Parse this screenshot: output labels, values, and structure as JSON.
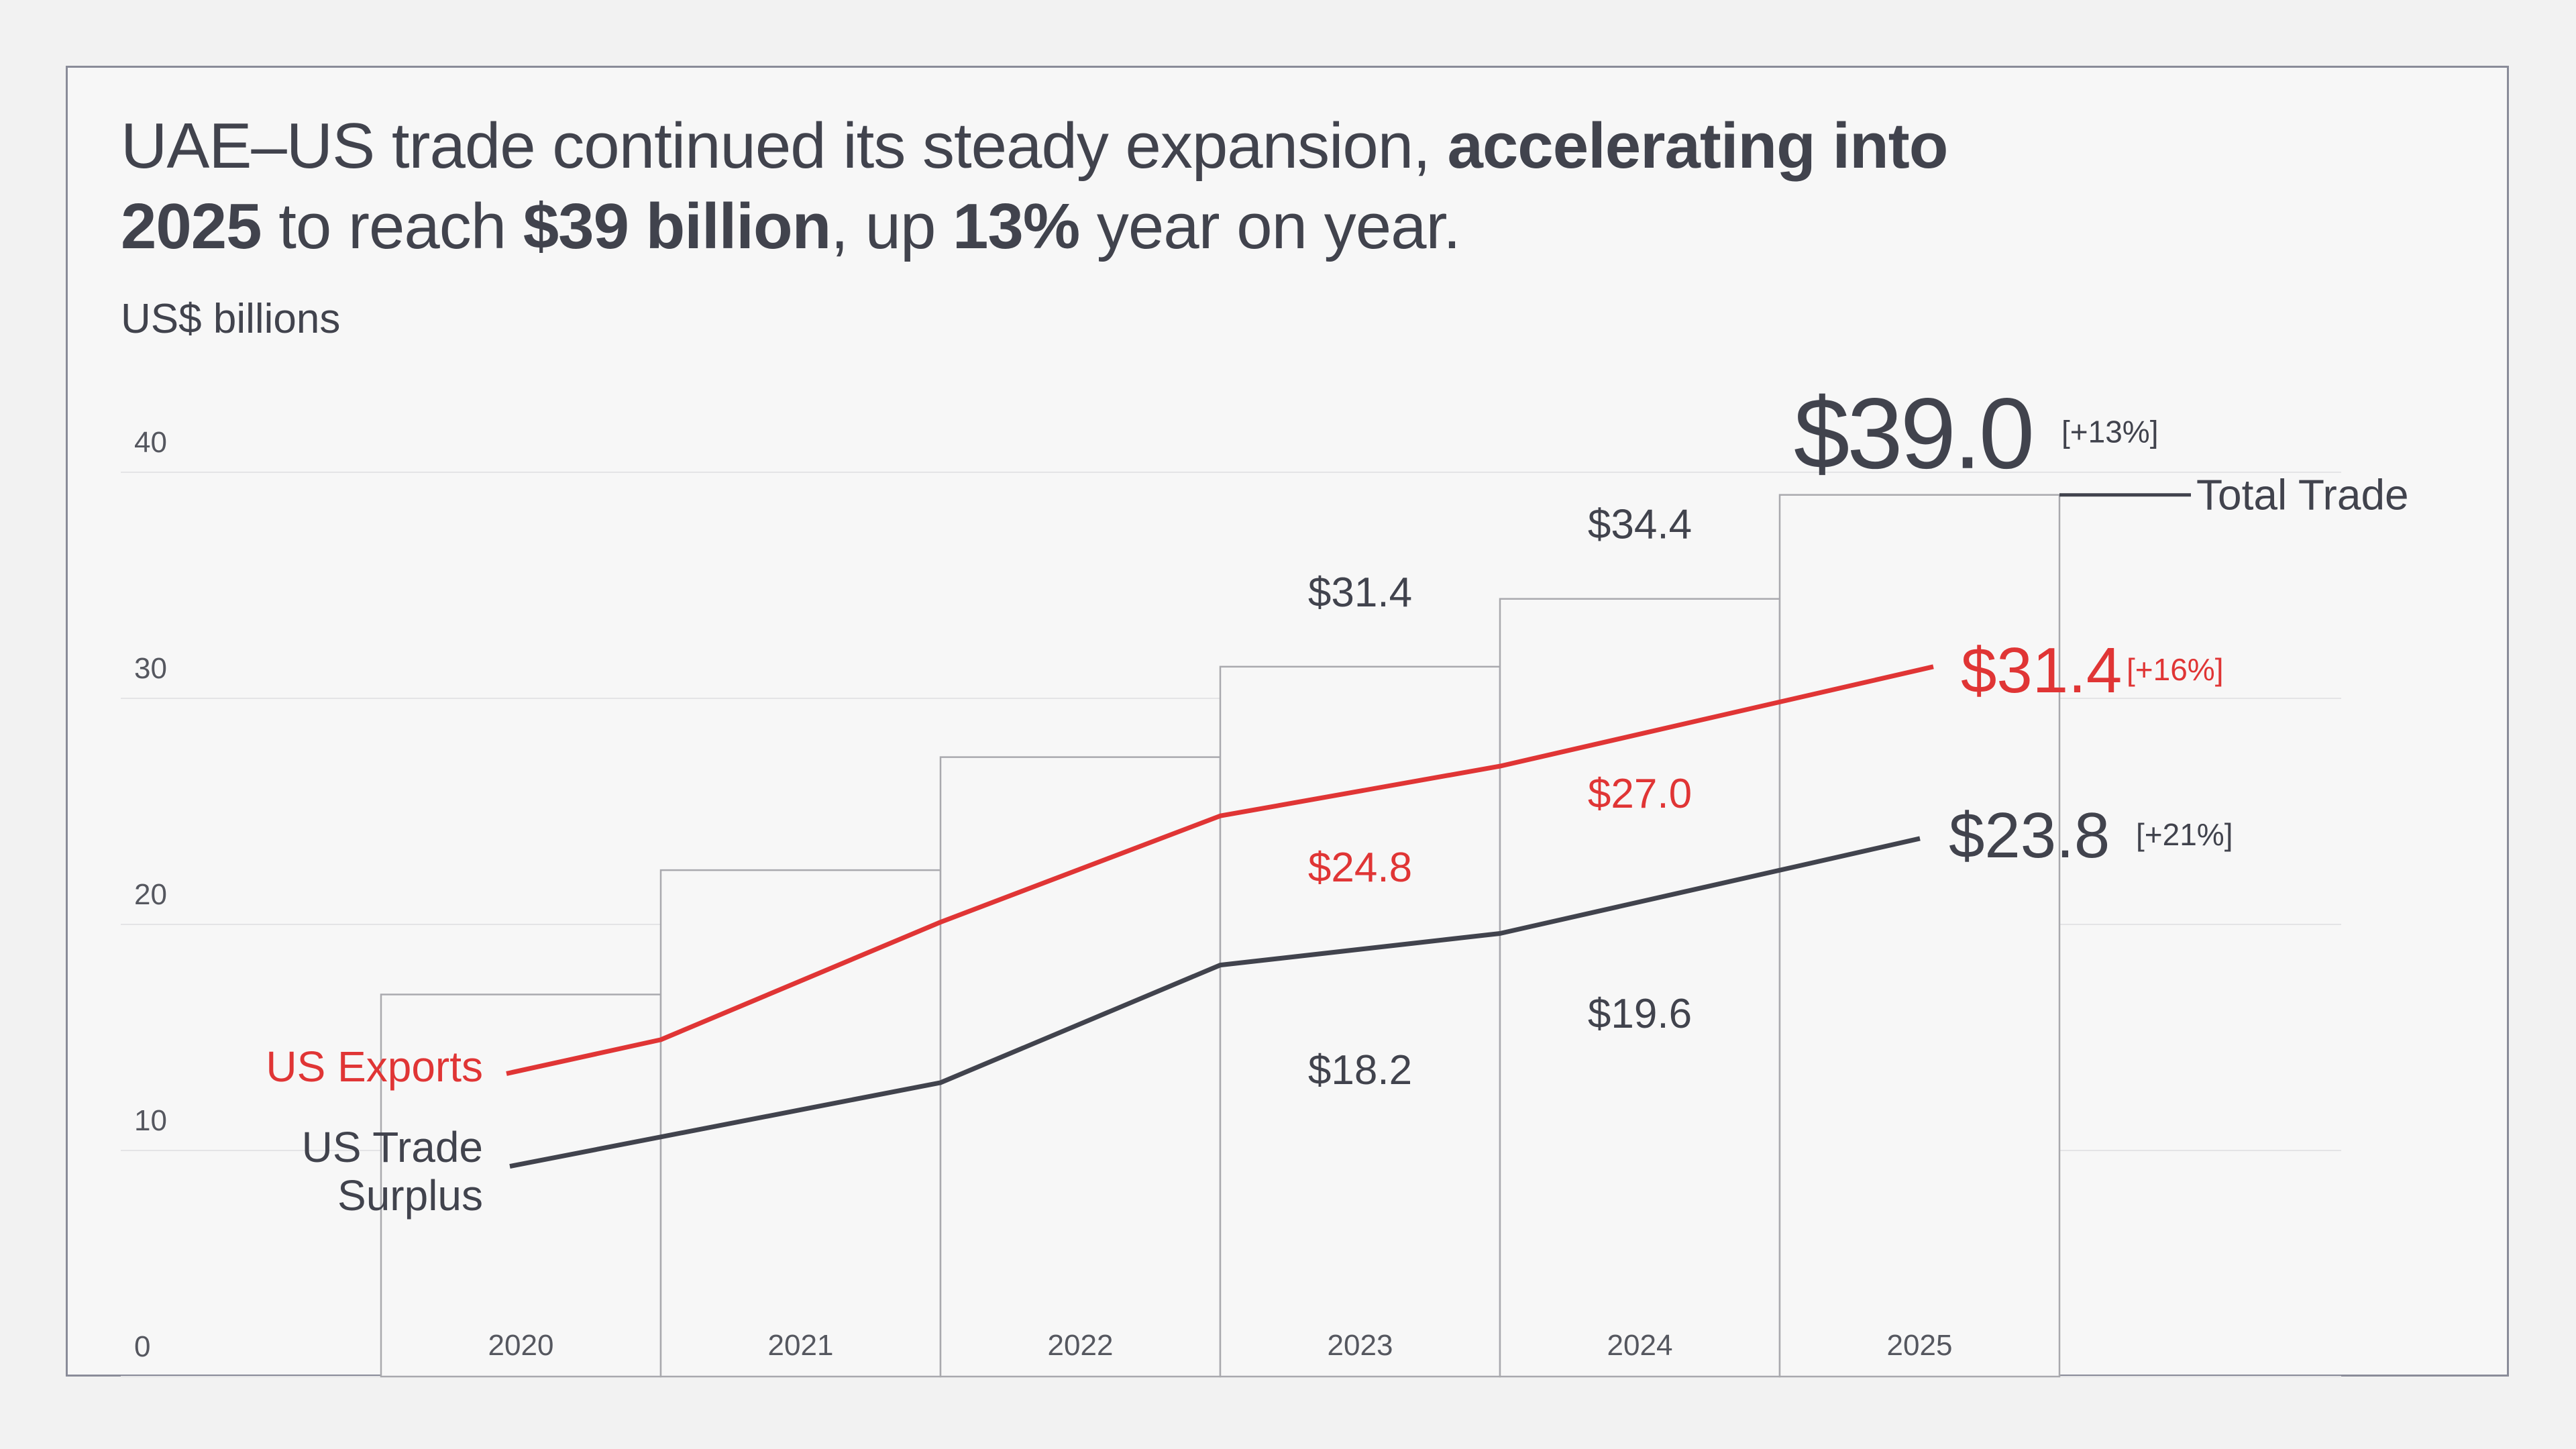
{
  "headline": {
    "part1": "UAE–US trade continued its steady expansion, ",
    "bold1": "accelerating into 2025",
    "part2": " to reach ",
    "bold2": "$39 billion",
    "part3": ", up ",
    "bold3": "13%",
    "part4": " year on year."
  },
  "unit_label": "US$ billions",
  "colors": {
    "exports": "#e03535",
    "surplus": "#41434d",
    "total": "#41434d",
    "grid": "#e4e4e6",
    "bar_outline": "#a9a9ae"
  },
  "chart_data": {
    "type": "bar",
    "title": "UAE–US trade",
    "ylabel": "US$ billions",
    "ylim": [
      0,
      40
    ],
    "yticks": [
      "0",
      "10",
      "20",
      "30",
      "40"
    ],
    "categories": [
      "2020",
      "2021",
      "2022",
      "2023",
      "2024",
      "2025"
    ],
    "series": [
      {
        "name": "Total Trade",
        "kind": "bar",
        "values": [
          16.9,
          22.4,
          27.4,
          31.4,
          34.4,
          39.0
        ],
        "labels": [
          "",
          "",
          "",
          "$31.4",
          "$34.4",
          "$39.0"
        ],
        "final_change": "[+13%]"
      },
      {
        "name": "US Exports",
        "kind": "line",
        "values": [
          13.4,
          14.9,
          20.1,
          24.8,
          27.0,
          31.4
        ],
        "labels": [
          "",
          "",
          "",
          "$24.8",
          "$27.0",
          "$31.4"
        ],
        "final_change": "[+16%]"
      },
      {
        "name": "US Trade Surplus",
        "kind": "line",
        "values": [
          9.3,
          10.6,
          13.0,
          18.2,
          19.6,
          23.8
        ],
        "labels": [
          "",
          "",
          "",
          "$18.2",
          "$19.6",
          "$23.8"
        ],
        "final_change": "[+21%]"
      }
    ],
    "legend": {
      "total": "Total Trade",
      "exports": "US Exports",
      "surplus_line1": "US Trade",
      "surplus_line2": "Surplus"
    }
  }
}
